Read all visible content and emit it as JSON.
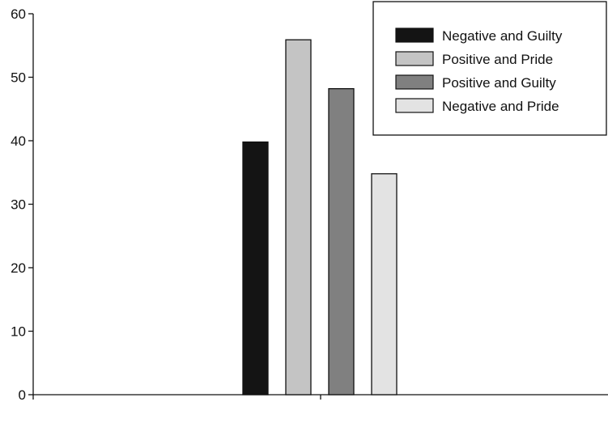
{
  "chart_data": {
    "type": "bar",
    "title": "",
    "xlabel": "",
    "ylabel": "",
    "ylim": [
      0,
      60
    ],
    "yticks": [
      0,
      10,
      20,
      30,
      40,
      50,
      60
    ],
    "grid": false,
    "legend_position": "top-right",
    "series": [
      {
        "name": "Negative and Guilty",
        "value": 39.8,
        "color": "#141414"
      },
      {
        "name": "Positive and Pride",
        "value": 55.9,
        "color": "#c4c4c4"
      },
      {
        "name": "Positive and Guilty",
        "value": 48.2,
        "color": "#808080"
      },
      {
        "name": "Negative and Pride",
        "value": 34.8,
        "color": "#e3e3e3"
      }
    ]
  }
}
